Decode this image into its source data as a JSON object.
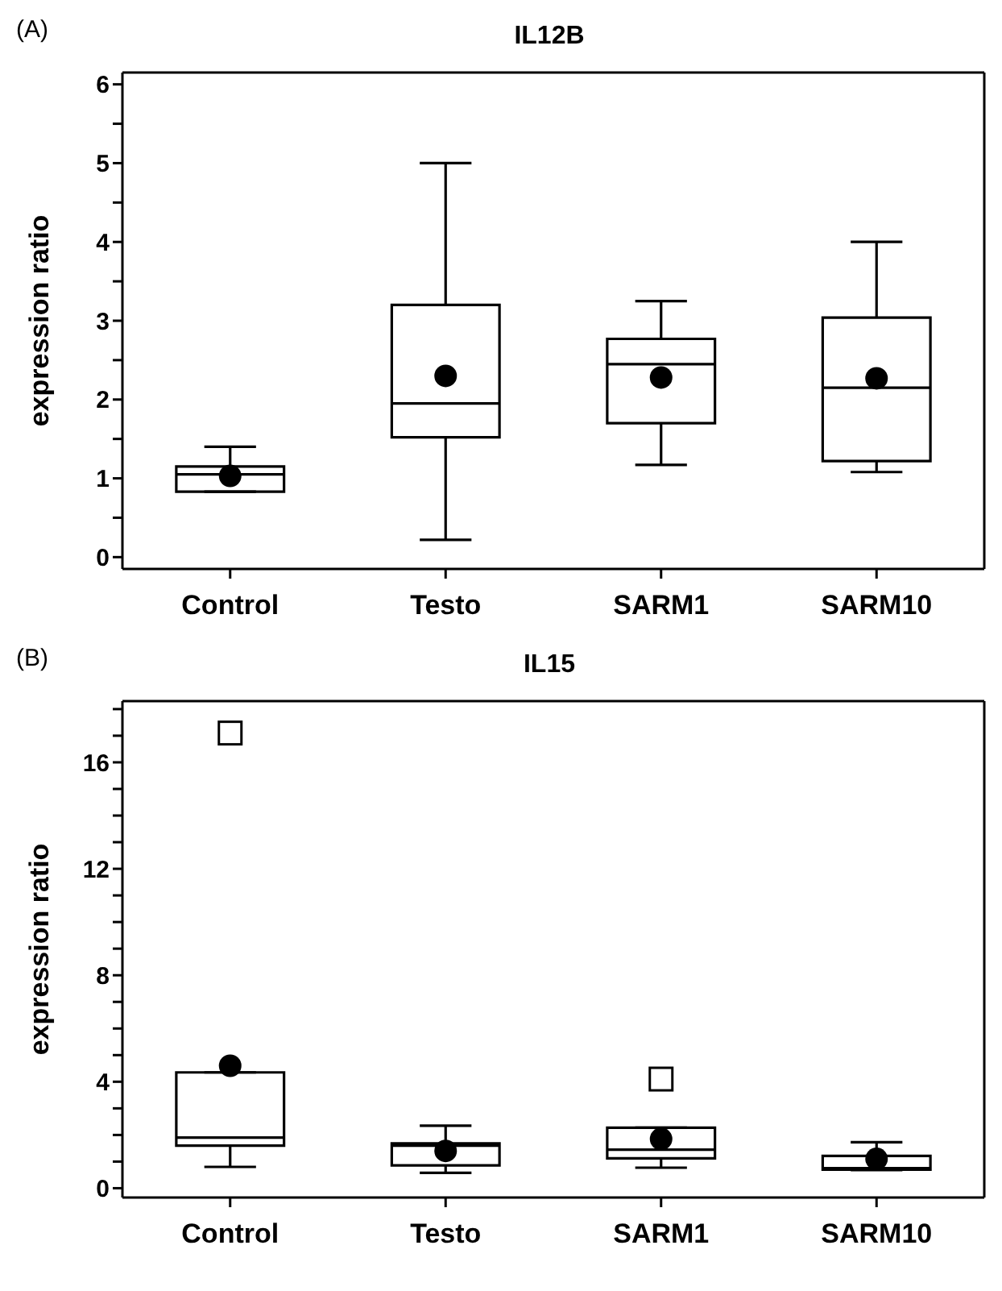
{
  "chart_data": [
    {
      "type": "box",
      "title": "IL12B",
      "annotations": [
        "(A)"
      ],
      "ylabel": "expression ratio",
      "categories": [
        "Control",
        "Testo",
        "SARM1",
        "SARM10"
      ],
      "ylim": [
        -0.15,
        6.15
      ],
      "yticks": [
        0,
        {
          "value": 0.5,
          "label": null
        },
        1,
        {
          "value": 1.5,
          "label": null
        },
        2,
        {
          "value": 2.5,
          "label": null
        },
        3,
        {
          "value": 3.5,
          "label": null
        },
        4,
        {
          "value": 4.5,
          "label": null
        },
        5,
        {
          "value": 5.5,
          "label": null
        },
        6
      ],
      "boxes": [
        {
          "low": 0.83,
          "q1": 0.83,
          "median": 1.05,
          "q3": 1.15,
          "high": 1.4,
          "mean": 1.03
        },
        {
          "low": 0.22,
          "q1": 1.52,
          "median": 1.95,
          "q3": 3.2,
          "high": 5.0,
          "mean": 2.3
        },
        {
          "low": 1.17,
          "q1": 1.7,
          "median": 2.45,
          "q3": 2.77,
          "high": 3.25,
          "mean": 2.28
        },
        {
          "low": 1.08,
          "q1": 1.22,
          "median": 2.15,
          "q3": 3.04,
          "high": 4.0,
          "mean": 2.27
        }
      ]
    },
    {
      "type": "box",
      "title": "IL15",
      "annotations": [
        "(B)"
      ],
      "ylabel": "expression ratio",
      "categories": [
        "Control",
        "Testo",
        "SARM1",
        "SARM10"
      ],
      "ylim": [
        -0.35,
        18.3
      ],
      "yticks": [
        0,
        {
          "value": 1,
          "label": null
        },
        {
          "value": 2,
          "label": null
        },
        {
          "value": 3,
          "label": null
        },
        4,
        {
          "value": 5,
          "label": null
        },
        {
          "value": 6,
          "label": null
        },
        {
          "value": 7,
          "label": null
        },
        8,
        {
          "value": 9,
          "label": null
        },
        {
          "value": 10,
          "label": null
        },
        {
          "value": 11,
          "label": null
        },
        12,
        {
          "value": 13,
          "label": null
        },
        {
          "value": 14,
          "label": null
        },
        {
          "value": 15,
          "label": null
        },
        16,
        {
          "value": 17,
          "label": null
        },
        {
          "value": 18,
          "label": null
        }
      ],
      "boxes": [
        {
          "low": 0.8,
          "q1": 1.6,
          "median": 1.9,
          "q3": 4.35,
          "high": 4.35,
          "mean": 4.6,
          "outliers": [
            17.1
          ]
        },
        {
          "low": 0.58,
          "q1": 0.86,
          "median": 1.6,
          "q3": 1.68,
          "high": 2.35,
          "mean": 1.4
        },
        {
          "low": 0.77,
          "q1": 1.12,
          "median": 1.45,
          "q3": 2.27,
          "high": 2.27,
          "mean": 1.85,
          "outliers": [
            4.1
          ]
        },
        {
          "low": 0.68,
          "q1": 0.7,
          "median": 0.75,
          "q3": 1.21,
          "high": 1.73,
          "mean": 1.1
        }
      ]
    }
  ]
}
